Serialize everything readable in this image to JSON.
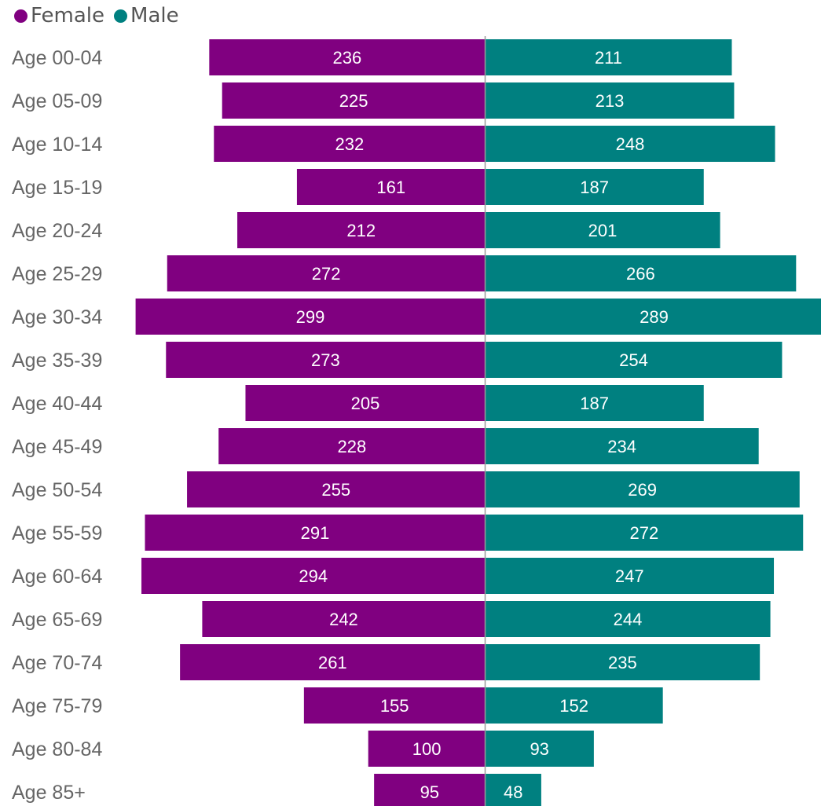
{
  "chart_data": {
    "type": "bar",
    "orientation": "horizontal",
    "layout": "population-pyramid",
    "categories": [
      "Age 00-04",
      "Age 05-09",
      "Age 10-14",
      "Age 15-19",
      "Age 20-24",
      "Age 25-29",
      "Age 30-34",
      "Age 35-39",
      "Age 40-44",
      "Age 45-49",
      "Age 50-54",
      "Age 55-59",
      "Age 60-64",
      "Age 65-69",
      "Age 70-74",
      "Age 75-79",
      "Age 80-84",
      "Age 85+"
    ],
    "series": [
      {
        "name": "Female",
        "color": "#800080",
        "direction": "left",
        "values": [
          236,
          225,
          232,
          161,
          212,
          272,
          299,
          273,
          205,
          228,
          255,
          291,
          294,
          242,
          261,
          155,
          100,
          95
        ]
      },
      {
        "name": "Male",
        "color": "#008080",
        "direction": "right",
        "values": [
          211,
          213,
          248,
          187,
          201,
          266,
          289,
          254,
          187,
          234,
          269,
          272,
          247,
          244,
          235,
          152,
          93,
          48
        ]
      }
    ],
    "legend": "top-left",
    "data_labels": true,
    "grid": false,
    "title": "",
    "xlabel": "",
    "ylabel": ""
  }
}
